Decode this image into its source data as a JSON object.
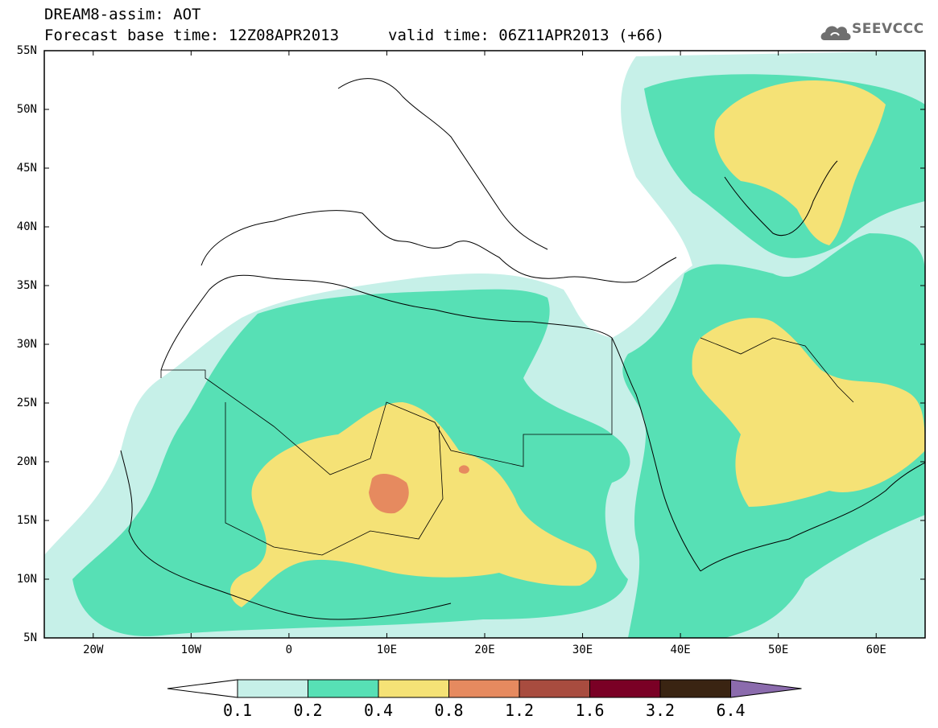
{
  "header": {
    "title": "DREAM8-assim: AOT",
    "base_time": "Forecast base time: 12Z08APR2013",
    "valid_time": "valid time: 06Z11APR2013 (+66)"
  },
  "logo": {
    "text": "SEEVCCC",
    "icon": "cloud-logo-icon",
    "color": "#6f6f6f"
  },
  "map": {
    "lat_labels": [
      "55N",
      "50N",
      "45N",
      "40N",
      "35N",
      "30N",
      "25N",
      "20N",
      "15N",
      "10N",
      "5N"
    ],
    "lon_labels": [
      "20W",
      "10W",
      "0",
      "10E",
      "20E",
      "30E",
      "40E",
      "50E",
      "60E"
    ],
    "lat_range": [
      5,
      55
    ],
    "lon_range": [
      -25,
      65
    ],
    "layers": [
      "aot-0.1-0.2",
      "aot-0.2-0.4",
      "aot-0.4-0.8",
      "aot-0.8-1.2",
      "coastlines-and-borders"
    ]
  },
  "colorbar": {
    "labels": [
      "0.1",
      "0.2",
      "0.4",
      "0.8",
      "1.2",
      "1.6",
      "3.2",
      "6.4"
    ],
    "colors": [
      "#ffffff",
      "#c6f0e8",
      "#57e0b5",
      "#f5e276",
      "#e68a5f",
      "#a84c3f",
      "#7a0025",
      "#3a2412",
      "#8b6bad"
    ]
  }
}
